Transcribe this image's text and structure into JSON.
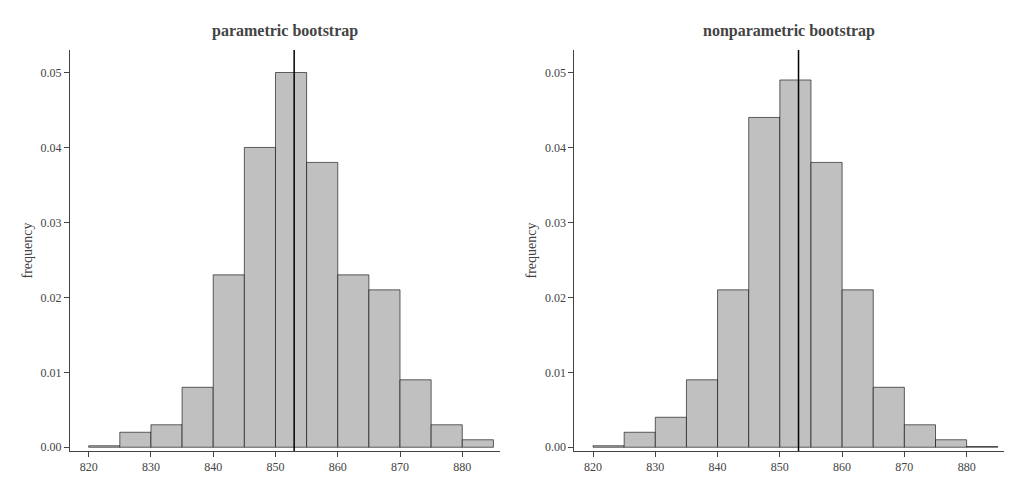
{
  "chart_data": [
    {
      "type": "histogram",
      "title": "parametric bootstrap",
      "ylabel": "frequency",
      "bins": [
        820,
        825,
        830,
        835,
        840,
        845,
        850,
        855,
        860,
        865,
        870,
        875,
        880,
        885
      ],
      "values": [
        0.0002,
        0.002,
        0.003,
        0.008,
        0.023,
        0.04,
        0.05,
        0.038,
        0.023,
        0.021,
        0.009,
        0.003,
        0.001
      ],
      "color": "#c0c0c0",
      "vline": 853,
      "xlim": [
        817,
        886
      ],
      "ylim": [
        -0.0005,
        0.053
      ],
      "xticks": [
        820,
        830,
        840,
        850,
        860,
        870,
        880
      ],
      "yticks": [
        {
          "value": 0,
          "label": "0.00"
        },
        0.01,
        0.02,
        0.03,
        0.04,
        0.05
      ],
      "grid": false
    },
    {
      "type": "histogram",
      "title": "nonparametric bootstrap",
      "ylabel": "frequency",
      "bins": [
        820,
        825,
        830,
        835,
        840,
        845,
        850,
        855,
        860,
        865,
        870,
        875,
        880,
        885
      ],
      "values": [
        0.0002,
        0.002,
        0.004,
        0.009,
        0.021,
        0.044,
        0.049,
        0.038,
        0.021,
        0.008,
        0.003,
        0.001,
        0.0001
      ],
      "color": "#c0c0c0",
      "vline": 853,
      "xlim": [
        817,
        886
      ],
      "ylim": [
        -0.0005,
        0.053
      ],
      "xticks": [
        820,
        830,
        840,
        850,
        860,
        870,
        880
      ],
      "yticks": [
        {
          "value": 0,
          "label": "0.00"
        },
        0.01,
        0.02,
        0.03,
        0.04,
        0.05
      ],
      "grid": false
    }
  ]
}
